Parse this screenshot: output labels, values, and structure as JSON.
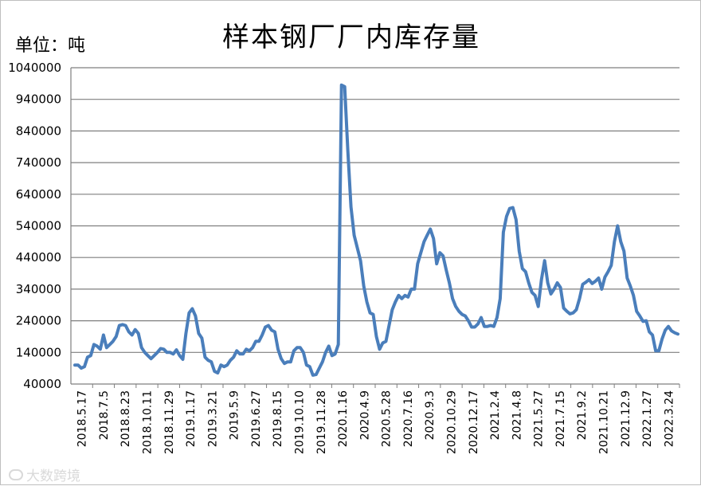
{
  "title": "样本钢厂厂内库存量",
  "unit_label": "单位：吨",
  "watermark": "大数跨境",
  "colors": {
    "line": "#4a7ebb",
    "grid": "#7f7f7f",
    "axis": "#7f7f7f"
  },
  "chart_data": {
    "type": "line",
    "title": "样本钢厂厂内库存量",
    "ylabel": "单位：吨",
    "ylim": [
      40000,
      1040000
    ],
    "y_ticks": [
      1040000,
      940000,
      840000,
      740000,
      640000,
      540000,
      440000,
      340000,
      240000,
      140000,
      40000
    ],
    "grid": "horizontal",
    "x_ticks": [
      "2018.5.17",
      "2018.7.5",
      "2018.8.23",
      "2018.10.11",
      "2018.11.29",
      "2019.1.17",
      "2019.3.21",
      "2019.5.9",
      "2019.6.27",
      "2019.8.15",
      "2019.10.10",
      "2019.11.28",
      "2020.1.16",
      "2020.4.9",
      "2020.5.28",
      "2020.7.16",
      "2020.9.3",
      "2020.10.29",
      "2020.12.17",
      "2021.2.4",
      "2021.4.8",
      "2021.5.27",
      "2021.7.15",
      "2021.9.2",
      "2021.10.21",
      "2021.12.9",
      "2022.1.27",
      "2022.3.24"
    ],
    "series": [
      {
        "values": [
          100000,
          100000,
          90000,
          95000,
          125000,
          130000,
          165000,
          160000,
          150000,
          195000,
          155000,
          165000,
          175000,
          190000,
          225000,
          228000,
          225000,
          205000,
          195000,
          212000,
          200000,
          155000,
          140000,
          130000,
          120000,
          130000,
          140000,
          152000,
          150000,
          140000,
          140000,
          135000,
          148000,
          130000,
          118000,
          200000,
          265000,
          278000,
          255000,
          200000,
          185000,
          125000,
          115000,
          110000,
          80000,
          75000,
          100000,
          95000,
          100000,
          115000,
          125000,
          145000,
          135000,
          135000,
          150000,
          145000,
          155000,
          175000,
          175000,
          195000,
          220000,
          225000,
          210000,
          205000,
          150000,
          120000,
          105000,
          110000,
          110000,
          145000,
          155000,
          155000,
          140000,
          100000,
          95000,
          68000,
          70000,
          90000,
          110000,
          140000,
          160000,
          130000,
          135000,
          165000,
          985000,
          980000,
          780000,
          600000,
          510000,
          470000,
          430000,
          350000,
          300000,
          265000,
          260000,
          190000,
          150000,
          170000,
          175000,
          225000,
          275000,
          300000,
          320000,
          310000,
          320000,
          315000,
          340000,
          340000,
          420000,
          455000,
          490000,
          510000,
          530000,
          500000,
          420000,
          455000,
          445000,
          400000,
          360000,
          310000,
          285000,
          270000,
          260000,
          255000,
          240000,
          220000,
          220000,
          230000,
          250000,
          222000,
          222000,
          225000,
          222000,
          250000,
          310000,
          520000,
          570000,
          595000,
          598000,
          560000,
          460000,
          405000,
          395000,
          360000,
          330000,
          320000,
          285000,
          370000,
          430000,
          360000,
          325000,
          340000,
          360000,
          345000,
          280000,
          270000,
          262000,
          265000,
          275000,
          310000,
          355000,
          362000,
          370000,
          358000,
          365000,
          375000,
          340000,
          378000,
          395000,
          415000,
          490000,
          540000,
          490000,
          460000,
          375000,
          350000,
          320000,
          270000,
          255000,
          238000,
          240000,
          205000,
          195000,
          145000,
          145000,
          182000,
          210000,
          222000,
          208000,
          202000,
          198000
        ]
      }
    ]
  }
}
